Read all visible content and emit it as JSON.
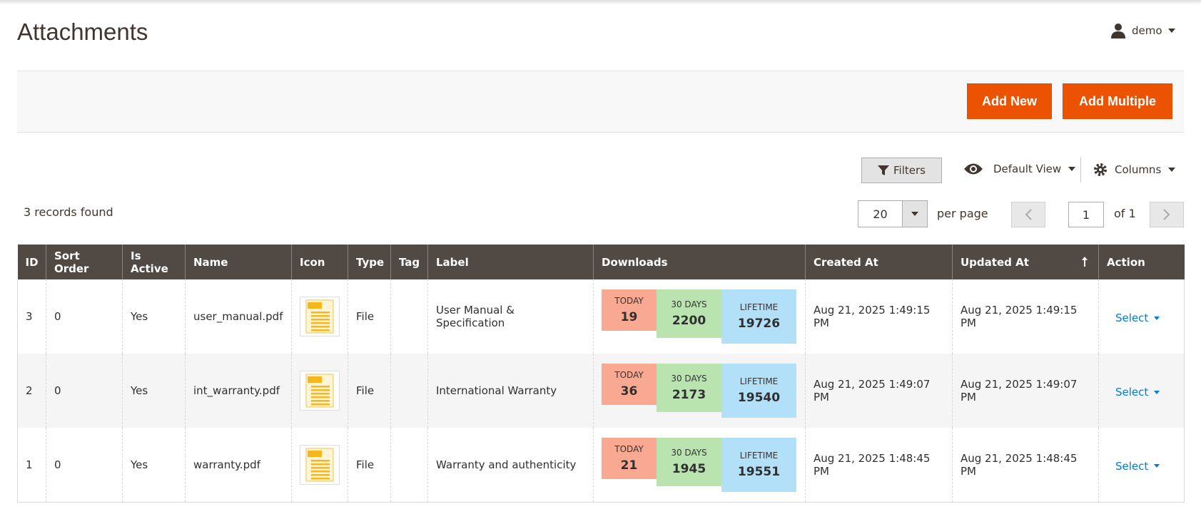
{
  "header": {
    "title": "Attachments",
    "user": "demo"
  },
  "actions": {
    "add_new": "Add New",
    "add_multiple": "Add Multiple"
  },
  "toolbar": {
    "filters": "Filters",
    "view": "Default View",
    "columns": "Columns"
  },
  "pager": {
    "records": "3 records found",
    "per_page_value": "20",
    "per_page": "per page",
    "page": "1",
    "of": "of 1"
  },
  "table": {
    "columns": [
      "ID",
      "Sort Order",
      "Is Active",
      "Name",
      "Icon",
      "Type",
      "Tag",
      "Label",
      "Downloads",
      "Created At",
      "Updated At",
      "Action"
    ],
    "download_labels": [
      "TODAY",
      "30 DAYS",
      "LIFETIME"
    ],
    "rows": [
      {
        "id": "3",
        "sort_order": "0",
        "is_active": "Yes",
        "name": "user_manual.pdf",
        "type": "File",
        "label": "User Manual & Specification",
        "downloads": [
          "19",
          "2200",
          "19726"
        ],
        "created_at": "Aug 21, 2025 1:49:15 PM",
        "updated_at": "Aug 21, 2025 1:49:15 PM",
        "action": "Select"
      },
      {
        "id": "2",
        "sort_order": "0",
        "is_active": "Yes",
        "name": "int_warranty.pdf",
        "type": "File",
        "label": "International Warranty",
        "downloads": [
          "36",
          "2173",
          "19540"
        ],
        "created_at": "Aug 21, 2025 1:49:07 PM",
        "updated_at": "Aug 21, 2025 1:49:07 PM",
        "action": "Select"
      },
      {
        "id": "1",
        "sort_order": "0",
        "is_active": "Yes",
        "name": "warranty.pdf",
        "type": "File",
        "label": "Warranty and authenticity",
        "downloads": [
          "21",
          "1945",
          "19551"
        ],
        "created_at": "Aug 21, 2025 1:48:45 PM",
        "updated_at": "Aug 21, 2025 1:48:45 PM",
        "action": "Select"
      }
    ]
  }
}
